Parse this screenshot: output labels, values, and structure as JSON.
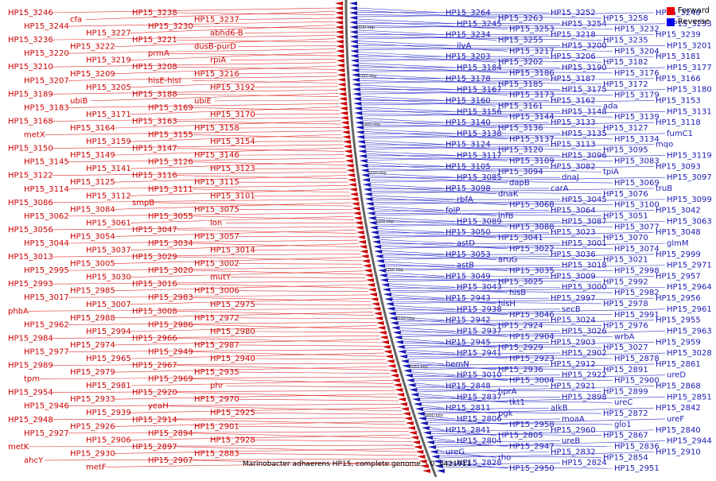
{
  "caption": "Marinobacter adhaerens HP15, complete genome. - 0..4421911",
  "legend": [
    {
      "label": "Forward",
      "color": "#ee0000"
    },
    {
      "label": "Reverse",
      "color": "#0000ee"
    }
  ],
  "colors": {
    "forward": "#cc0000",
    "reverse": "#1a1ab4",
    "forward_line": "#e03030",
    "reverse_line": "#3333cc",
    "track": "#666666"
  },
  "scale_ticks": [
    "3400 kbp",
    "3350 kbp",
    "3300 kbp",
    "3250 kbp",
    "3200 kbp",
    "3150 kbp",
    "3100 kbp",
    "3050 kbp",
    "3000 kbp"
  ],
  "forward_labels": [
    "HP15_3246",
    "cfa",
    "HP15_3238",
    "HP15_3237",
    "HP15_3244",
    "HP15_3227",
    "HP15_3230",
    "abhd6-B",
    "HP15_3236",
    "HP15_3222",
    "HP15_3221",
    "dusB-purD",
    "HP15_3220",
    "HP15_3219",
    "prmA",
    "rpiA",
    "HP15_3210",
    "HP15_3209",
    "HP15_3208",
    "HP15_3216",
    "HP15_3207",
    "HP15_3205",
    "hisE-hisI",
    "HP15_3192",
    "HP15_3189",
    "ubiB",
    "HP15_3188",
    "ubiE",
    "HP15_3183",
    "HP15_3171",
    "HP15_3169",
    "HP15_3170",
    "HP15_3168",
    "HP15_3164",
    "HP15_3163",
    "HP15_3158",
    "metX",
    "HP15_3159",
    "HP15_3155",
    "HP15_3154",
    "HP15_3150",
    "HP15_3149",
    "HP15_3147",
    "HP15_3146",
    "HP15_3145",
    "HP15_3141",
    "HP15_3126",
    "HP15_3123",
    "HP15_3122",
    "HP15_3125",
    "HP15_3116",
    "HP15_3115",
    "HP15_3114",
    "HP15_3112",
    "HP15_3111",
    "HP15_3101",
    "HP15_3086",
    "HP15_3084",
    "smpB",
    "HP15_3075",
    "HP15_3062",
    "HP15_3061",
    "HP15_3055",
    "lon",
    "HP15_3056",
    "HP15_3054",
    "HP15_3047",
    "HP15_3057",
    "HP15_3044",
    "HP15_3037",
    "HP15_3034",
    "HP15_3014",
    "HP15_3013",
    "HP15_3005",
    "HP15_3029",
    "HP15_3002",
    "HP15_2995",
    "HP15_3030",
    "HP15_3020",
    "mutY",
    "HP15_2993",
    "HP15_2985",
    "HP15_3016",
    "HP15_3006",
    "HP15_3017",
    "HP15_3007",
    "HP15_2983",
    "HP15_2975",
    "phbA",
    "HP15_2988",
    "HP15_3008",
    "HP15_2972",
    "HP15_2962",
    "HP15_2994",
    "HP15_2986",
    "HP15_2980",
    "HP15_2984",
    "HP15_2974",
    "HP15_2966",
    "HP15_2987",
    "HP15_2977",
    "HP15_2965",
    "HP15_2949",
    "HP15_2940",
    "HP15_2989",
    "HP15_2979",
    "HP15_2967",
    "HP15_2935",
    "tpm",
    "HP15_2981",
    "HP15_2969",
    "phr",
    "HP15_2954",
    "HP15_2933",
    "HP15_2920",
    "HP15_2970",
    "HP15_2946",
    "HP15_2939",
    "yeaH",
    "HP15_2925",
    "HP15_2948",
    "HP15_2926",
    "HP15_2914",
    "HP15_2901",
    "HP15_2927",
    "HP15_2906",
    "HP15_2894",
    "HP15_2928",
    "metK",
    "HP15_2930",
    "HP15_2897",
    "HP15_2883",
    "ahcY",
    "metF",
    "HP15_2907"
  ],
  "reverse_labels": [
    "HP15_3264",
    "HP15_3263",
    "HP15_3252",
    "HP15_3258",
    "HP15_3240",
    "HP15_3245",
    "HP15_3253",
    "HP15_3254",
    "HP15_3232",
    "HP15_3233",
    "HP15_3234",
    "HP15_3255",
    "HP15_3218",
    "HP15_3235",
    "HP15_3239",
    "ilvA",
    "HP15_3217",
    "HP15_3200",
    "HP15_3204",
    "HP15_3201",
    "HP15_3203",
    "HP15_3202",
    "HP15_3206",
    "HP15_3182",
    "HP15_3181",
    "HP15_3184",
    "HP15_3186",
    "HP15_3190",
    "HP15_3176",
    "HP15_3177",
    "HP15_3178",
    "HP15_3185",
    "HP15_3187",
    "HP15_3172",
    "HP15_3166",
    "HP15_3167",
    "HP15_3173",
    "HP15_3175",
    "HP15_3179",
    "HP15_3180",
    "HP15_3160",
    "HP15_3161",
    "HP15_3162",
    "ada",
    "HP15_3153",
    "HP15_3156",
    "HP15_3144",
    "HP15_3148",
    "HP15_3139",
    "HP15_3131",
    "HP15_3140",
    "HP15_3136",
    "HP15_3133",
    "HP15_3127",
    "HP15_3118",
    "HP15_3138",
    "HP15_3137",
    "HP15_3135",
    "HP15_3134",
    "fumC1",
    "HP15_3124",
    "HP15_3120",
    "HP15_3113",
    "HP15_3095",
    "mqo",
    "HP15_3117",
    "HP15_3109",
    "HP15_3096",
    "HP15_3083",
    "HP15_3119",
    "HP15_3105",
    "HP15_3094",
    "HP15_3082",
    "tpiA",
    "HP15_3093",
    "HP15_3085",
    "dapB",
    "dnaJ",
    "HP15_3069",
    "HP15_3097",
    "HP15_3098",
    "dnaK",
    "carA",
    "HP15_3076",
    "truB",
    "rbfA",
    "HP15_3068",
    "HP15_3045",
    "HP15_3100",
    "HP15_3099",
    "folP",
    "infB",
    "HP15_3064",
    "HP15_3051",
    "HP15_3042",
    "HP15_3089",
    "HP15_3088",
    "HP15_3087",
    "HP15_3077",
    "HP15_3063",
    "HP15_3050",
    "HP15_3041",
    "HP15_3023",
    "HP15_3070",
    "HP15_3048",
    "astD",
    "HP15_3022",
    "HP15_3001",
    "HP15_3074",
    "glmM",
    "HP15_3053",
    "aruG",
    "HP15_3036",
    "HP15_3021",
    "HP15_2999",
    "astB",
    "HP15_3035",
    "HP15_3018",
    "HP15_2998",
    "HP15_2971",
    "HP15_3049",
    "HP15_3025",
    "HP15_3009",
    "HP15_2992",
    "HP15_2957",
    "HP15_3043",
    "hisB",
    "HP15_3000",
    "HP15_2982",
    "HP15_2964",
    "HP15_2943",
    "hisH",
    "HP15_2997",
    "HP15_2978",
    "HP15_2956",
    "HP15_2938",
    "HP15_3046",
    "secB",
    "HP15_2991",
    "HP15_2961",
    "HP15_2942",
    "HP15_2924",
    "HP15_3024",
    "HP15_2976",
    "HP15_2955",
    "HP15_2937",
    "HP15_2904",
    "HP15_3026",
    "wrbA",
    "HP15_2963",
    "HP15_2945",
    "HP15_2929",
    "HP15_2903",
    "HP15_3027",
    "HP15_2959",
    "HP15_2941",
    "HP15_2923",
    "HP15_2902",
    "HP15_2878",
    "HP15_3028",
    "hemN",
    "HP15_2936",
    "HP15_2912",
    "HP15_2891",
    "HP15_2861",
    "HP15_3010",
    "HP15_3004",
    "HP15_2922",
    "HP15_2900",
    "ureD",
    "HP15_2848",
    "hprA",
    "HP15_2921",
    "HP15_2899",
    "HP15_2868",
    "HP15_2837",
    "tkt1",
    "HP15_2898",
    "ureC",
    "HP15_2851",
    "HP15_2811",
    "pgk",
    "alkB",
    "HP15_2872",
    "HP15_2842",
    "HP15_2806",
    "HP15_2958",
    "moaA",
    "glo1",
    "ureF",
    "HP15_2841",
    "HP15_2805",
    "HP15_2960",
    "HP15_2867",
    "HP15_2840",
    "HP15_2804",
    "HP15_2947",
    "ureB",
    "HP15_2836",
    "HP15_2944",
    "ureG",
    "rho",
    "HP15_2832",
    "HP15_2854",
    "HP15_2910",
    "HP15_2828",
    "HP15_2950",
    "HP15_2824",
    "HP15_2951"
  ]
}
